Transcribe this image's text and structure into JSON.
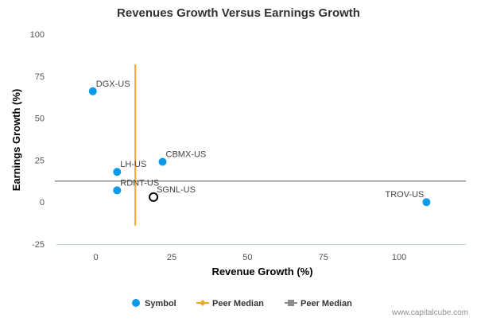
{
  "chart_data": {
    "type": "scatter",
    "title": "Revenues Growth Versus Earnings Growth",
    "xlabel": "Revenue Growth (%)",
    "ylabel": "Earnings Growth (%)",
    "xlim": [
      -13,
      122
    ],
    "ylim": [
      -25,
      100
    ],
    "xticks": [
      0,
      25,
      50,
      75,
      100
    ],
    "yticks": [
      -25,
      0,
      25,
      50,
      75,
      100
    ],
    "points": [
      {
        "label": "DGX-US",
        "x": -1,
        "y": 66,
        "style": "filled"
      },
      {
        "label": "CBMX-US",
        "x": 22,
        "y": 24,
        "style": "filled"
      },
      {
        "label": "LH-US",
        "x": 7,
        "y": 18,
        "style": "filled"
      },
      {
        "label": "RDNT-US",
        "x": 7,
        "y": 7,
        "style": "filled"
      },
      {
        "label": "SGNL-US",
        "x": 19,
        "y": 3,
        "style": "hollow"
      },
      {
        "label": "TROV-US",
        "x": 109,
        "y": 0,
        "style": "filled"
      }
    ],
    "peer_median_x": 13,
    "peer_median_x_yrange": [
      -14,
      82
    ],
    "peer_median_y": 12.5,
    "legend": {
      "position": "bottom",
      "items": [
        {
          "label": "Symbol",
          "marker": "circle",
          "color": "#0a9bea"
        },
        {
          "label": "Peer Median",
          "marker": "diamond-line",
          "color": "#f5a623"
        },
        {
          "label": "Peer Median",
          "marker": "square-line",
          "color": "#8c8c8c"
        }
      ]
    },
    "colors": {
      "point": "#0a9bea",
      "hollow_stroke": "#000000",
      "median_x": "#f5a623",
      "median_y": "#8c8c8c",
      "axis": "#c0d0e0"
    },
    "grid": false
  },
  "credit": "www.capitalcube.com"
}
